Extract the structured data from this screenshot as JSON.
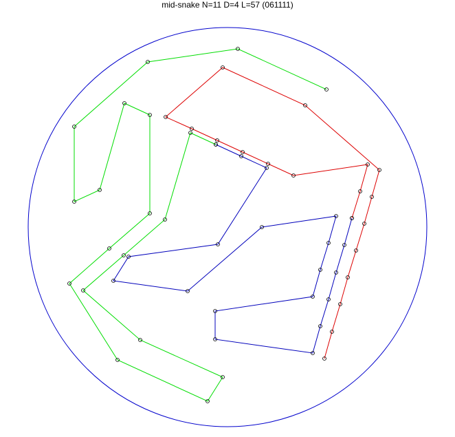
{
  "title": "mid-snake N=11 D=4 L=57 (061111)",
  "colors": {
    "boundary": "#0000cc",
    "segment_red": "#dd0000",
    "segment_blue": "#0000bb",
    "segment_green": "#00dd00",
    "node": "#000000"
  }
}
